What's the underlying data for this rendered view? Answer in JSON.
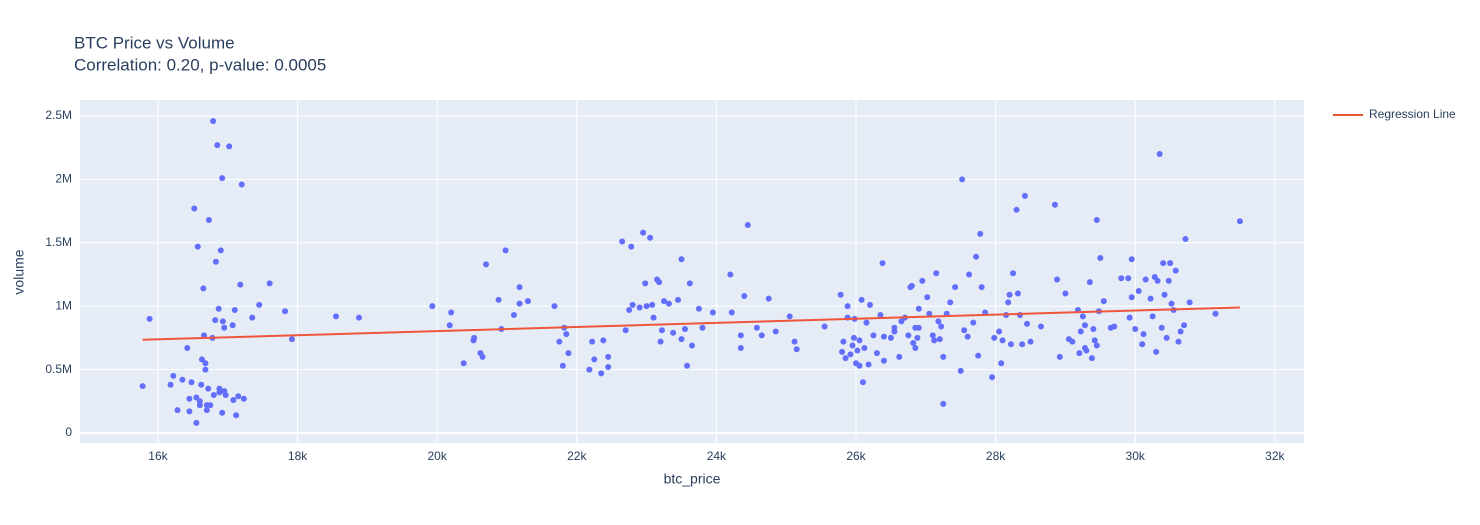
{
  "chart_data": {
    "type": "scatter",
    "title": "BTC Price vs Volume",
    "subtitle": "Correlation: 0.20, p-value: 0.0005",
    "x_label": "btc_price",
    "y_label": "volume",
    "xlim": [
      14883,
      32418
    ],
    "ylim": [
      -79000,
      2626000
    ],
    "xticks": [
      {
        "value": 16000,
        "label": "16k"
      },
      {
        "value": 18000,
        "label": "18k"
      },
      {
        "value": 20000,
        "label": "20k"
      },
      {
        "value": 22000,
        "label": "22k"
      },
      {
        "value": 24000,
        "label": "24k"
      },
      {
        "value": 26000,
        "label": "26k"
      },
      {
        "value": 28000,
        "label": "28k"
      },
      {
        "value": 30000,
        "label": "30k"
      },
      {
        "value": 32000,
        "label": "32k"
      }
    ],
    "yticks": [
      0,
      {
        "value": 500000,
        "label": "0.5M"
      },
      {
        "value": 1000000,
        "label": "1M"
      },
      {
        "value": 1500000,
        "label": "1.5M"
      },
      {
        "value": 2000000,
        "label": "2M"
      },
      {
        "value": 2500000,
        "label": "2.5M"
      }
    ],
    "grid": true,
    "legend": "right",
    "series": [
      {
        "mode": "markers",
        "color": "#636efa",
        "x": [
          15780,
          15880,
          16180,
          16220,
          16280,
          16350,
          16420,
          16450,
          16450,
          16480,
          16520,
          16550,
          16570,
          16600,
          16600,
          16620,
          16630,
          16650,
          16660,
          16680,
          16680,
          16700,
          16700,
          16720,
          16730,
          16750,
          16780,
          16790,
          16800,
          16820,
          16830,
          16850,
          16870,
          16880,
          16900,
          16920,
          16930,
          16950,
          16950,
          16970,
          17020,
          17070,
          17080,
          17100,
          17120,
          17150,
          17180,
          17200,
          17230,
          17350,
          17450,
          17600,
          17820,
          17920,
          18550,
          18880,
          16880,
          16920,
          16550,
          19930,
          20180,
          20200,
          20380,
          20520,
          20530,
          20620,
          20650,
          20700,
          20880,
          20920,
          20980,
          21100,
          21180,
          21180,
          21300,
          21680,
          21750,
          21800,
          21820,
          21850,
          21880,
          22180,
          22220,
          22250,
          22350,
          22380,
          22450,
          22450,
          22650,
          22700,
          22750,
          22780,
          22800,
          22900,
          22950,
          22980,
          23000,
          23050,
          23080,
          23100,
          23150,
          23180,
          23200,
          23220,
          23250,
          23320,
          23380,
          23450,
          23500,
          23500,
          23550,
          23580,
          23620,
          23650,
          23750,
          23800,
          23950,
          24200,
          24220,
          24350,
          24350,
          24400,
          24450,
          24580,
          24650,
          24750,
          24850,
          25050,
          25120,
          25150,
          25550,
          25780,
          25800,
          25820,
          25850,
          25880,
          25880,
          25920,
          25950,
          25970,
          25980,
          26000,
          26020,
          26050,
          26050,
          26080,
          26100,
          26120,
          26150,
          26180,
          26200,
          26250,
          26300,
          26350,
          26380,
          26400,
          26400,
          26500,
          26550,
          26550,
          26620,
          26650,
          26700,
          26750,
          26780,
          26800,
          26820,
          26850,
          26850,
          26880,
          26900,
          26900,
          26950,
          27020,
          27050,
          27100,
          27120,
          27150,
          27180,
          27200,
          27220,
          27250,
          27250,
          27300,
          27350,
          27420,
          27500,
          27520,
          27550,
          27600,
          27620,
          27680,
          27720,
          27750,
          27780,
          27800,
          27850,
          27950,
          27980,
          28050,
          28080,
          28100,
          28150,
          28180,
          28200,
          28220,
          28250,
          28300,
          28320,
          28350,
          28380,
          28420,
          28450,
          28500,
          28650,
          28850,
          28880,
          28920,
          29000,
          29050,
          29100,
          29180,
          29200,
          29220,
          29250,
          29280,
          29280,
          29300,
          29350,
          29380,
          29400,
          29420,
          29450,
          29450,
          29480,
          29500,
          29550,
          29650,
          29700,
          29800,
          29900,
          29920,
          29950,
          29950,
          30000,
          30050,
          30100,
          30120,
          30150,
          30220,
          30250,
          30280,
          30300,
          30320,
          30350,
          30380,
          30400,
          30420,
          30450,
          30480,
          30500,
          30520,
          30550,
          30580,
          30620,
          30650,
          30700,
          30720,
          30780,
          31150,
          31500
        ],
        "values": [
          370000,
          900000,
          380000,
          450000,
          180000,
          420000,
          670000,
          270000,
          170000,
          400000,
          1770000,
          80000,
          1470000,
          250000,
          220000,
          380000,
          580000,
          1140000,
          770000,
          550000,
          500000,
          220000,
          180000,
          350000,
          1680000,
          220000,
          750000,
          2460000,
          300000,
          890000,
          1350000,
          2270000,
          980000,
          320000,
          1440000,
          2010000,
          880000,
          330000,
          830000,
          300000,
          2260000,
          850000,
          260000,
          970000,
          140000,
          290000,
          1170000,
          1960000,
          270000,
          910000,
          1010000,
          1180000,
          960000,
          740000,
          920000,
          910000,
          350000,
          160000,
          280000,
          1000000,
          850000,
          950000,
          550000,
          730000,
          750000,
          630000,
          600000,
          1330000,
          1050000,
          820000,
          1440000,
          930000,
          1020000,
          1150000,
          1040000,
          1000000,
          720000,
          530000,
          830000,
          780000,
          630000,
          500000,
          720000,
          580000,
          470000,
          730000,
          600000,
          520000,
          1510000,
          810000,
          970000,
          1470000,
          1010000,
          990000,
          1580000,
          1180000,
          1000000,
          1540000,
          1010000,
          910000,
          1210000,
          1190000,
          720000,
          810000,
          1040000,
          1020000,
          790000,
          1050000,
          740000,
          1370000,
          820000,
          530000,
          1180000,
          690000,
          980000,
          830000,
          950000,
          1250000,
          950000,
          670000,
          770000,
          1080000,
          1640000,
          830000,
          770000,
          1060000,
          800000,
          920000,
          720000,
          660000,
          840000,
          1090000,
          640000,
          720000,
          590000,
          910000,
          1000000,
          620000,
          690000,
          750000,
          900000,
          550000,
          650000,
          730000,
          530000,
          1050000,
          400000,
          670000,
          870000,
          540000,
          1010000,
          770000,
          630000,
          930000,
          1340000,
          760000,
          570000,
          750000,
          830000,
          800000,
          600000,
          880000,
          910000,
          770000,
          1150000,
          1160000,
          710000,
          830000,
          670000,
          750000,
          980000,
          830000,
          1200000,
          1070000,
          940000,
          770000,
          730000,
          1260000,
          880000,
          740000,
          840000,
          600000,
          230000,
          940000,
          1030000,
          1150000,
          490000,
          2000000,
          810000,
          760000,
          1250000,
          870000,
          1390000,
          610000,
          1570000,
          1150000,
          950000,
          440000,
          750000,
          800000,
          550000,
          730000,
          930000,
          1030000,
          1090000,
          700000,
          1260000,
          1760000,
          1100000,
          930000,
          700000,
          1870000,
          860000,
          720000,
          840000,
          1800000,
          1210000,
          600000,
          1100000,
          740000,
          720000,
          970000,
          630000,
          800000,
          920000,
          670000,
          850000,
          650000,
          1190000,
          590000,
          820000,
          730000,
          690000,
          1680000,
          960000,
          1380000,
          1040000,
          830000,
          840000,
          1220000,
          1220000,
          910000,
          1370000,
          1070000,
          820000,
          1120000,
          700000,
          780000,
          1210000,
          1060000,
          920000,
          1230000,
          640000,
          1200000,
          2200000,
          830000,
          1340000,
          1090000,
          750000,
          1200000,
          1340000,
          1020000,
          970000,
          1280000,
          720000,
          800000,
          850000,
          1530000,
          1030000,
          940000,
          1670000
        ]
      },
      {
        "name": "Regression Line",
        "mode": "lines",
        "color": "#ef553b",
        "x": [
          15780,
          31500
        ],
        "values": [
          735000,
          990000
        ]
      }
    ]
  }
}
